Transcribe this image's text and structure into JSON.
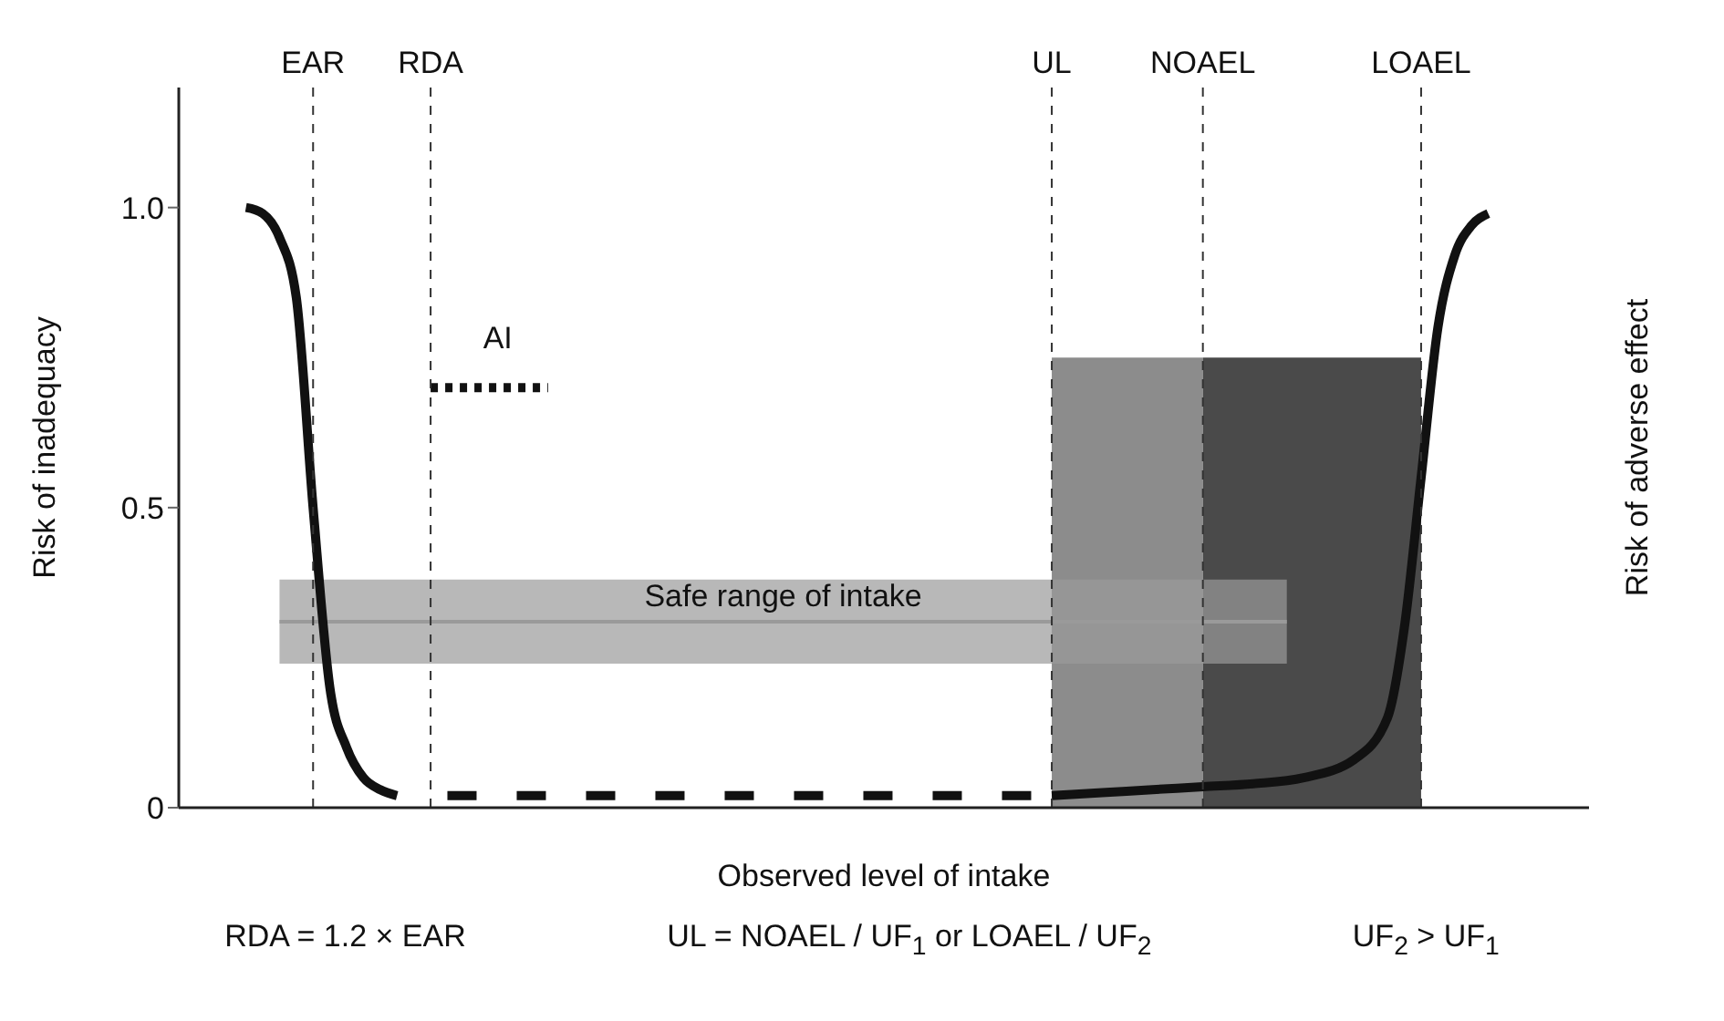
{
  "chart_data": {
    "type": "line",
    "xlabel": "Observed level of intake",
    "ylabel": "Risk of inadequacy",
    "y2label": "Risk of adverse effect",
    "categories": [
      null,
      null,
      null,
      null,
      null,
      null,
      null,
      null,
      "EAR",
      null,
      null,
      null,
      null,
      null,
      null,
      "RDA",
      null,
      null,
      null,
      null,
      null,
      null,
      null,
      null,
      null,
      null,
      null,
      null,
      null,
      null,
      null,
      null,
      null,
      null,
      null,
      null,
      null,
      null,
      null,
      null,
      null,
      null,
      null,
      null,
      null,
      null,
      null,
      null,
      null,
      null,
      null,
      null,
      "UL",
      null,
      null,
      null,
      null,
      null,
      null,
      null,
      null,
      "NOAEL",
      null,
      null,
      null,
      null,
      null,
      null,
      null,
      null,
      null,
      null,
      null,
      null,
      "LOAEL",
      null,
      null,
      null,
      null,
      null,
      null,
      null,
      null,
      null,
      null
    ],
    "ylim": [
      0,
      1.2
    ],
    "yticks": [
      0,
      0.5,
      {
        "value": 1,
        "label": "1.0"
      }
    ],
    "grid": "x",
    "marker": "none",
    "series": [
      {
        "type": "area",
        "color": "#8c8c8c",
        "values": [
          null,
          null,
          null,
          null,
          null,
          null,
          null,
          null,
          null,
          null,
          null,
          null,
          null,
          null,
          null,
          null,
          null,
          null,
          null,
          null,
          null,
          null,
          null,
          null,
          null,
          null,
          null,
          null,
          null,
          null,
          null,
          null,
          null,
          null,
          null,
          null,
          null,
          null,
          null,
          null,
          null,
          null,
          null,
          null,
          null,
          null,
          null,
          null,
          null,
          null,
          null,
          null,
          0.75,
          0.75,
          0.75,
          0.75,
          0.75,
          0.75,
          0.75,
          0.75,
          0.75,
          0.75,
          null,
          null,
          null,
          null,
          null,
          null,
          null,
          null,
          null,
          null,
          null,
          null,
          null,
          null,
          null,
          null,
          null,
          null,
          null,
          null,
          null,
          null,
          null
        ]
      },
      {
        "type": "area",
        "color": "#4a4a4a",
        "values": [
          null,
          null,
          null,
          null,
          null,
          null,
          null,
          null,
          null,
          null,
          null,
          null,
          null,
          null,
          null,
          null,
          null,
          null,
          null,
          null,
          null,
          null,
          null,
          null,
          null,
          null,
          null,
          null,
          null,
          null,
          null,
          null,
          null,
          null,
          null,
          null,
          null,
          null,
          null,
          null,
          null,
          null,
          null,
          null,
          null,
          null,
          null,
          null,
          null,
          null,
          null,
          null,
          null,
          null,
          null,
          null,
          null,
          null,
          null,
          null,
          null,
          0.75,
          0.75,
          0.75,
          0.75,
          0.75,
          0.75,
          0.75,
          0.75,
          0.75,
          0.75,
          0.75,
          0.75,
          0.75,
          0.75,
          null,
          null,
          null,
          null,
          null,
          null,
          null,
          null,
          null,
          null
        ]
      },
      {
        "name": "Safe range of intake",
        "color": "#9a9a9a",
        "values": [
          null,
          null,
          null,
          null,
          null,
          null,
          0.31,
          0.31,
          0.31,
          0.31,
          0.31,
          0.31,
          0.31,
          0.31,
          0.31,
          0.31,
          0.31,
          0.31,
          0.31,
          0.31,
          0.31,
          0.31,
          0.31,
          0.31,
          0.31,
          0.31,
          0.31,
          0.31,
          0.31,
          0.31,
          0.31,
          0.31,
          0.31,
          0.31,
          0.31,
          0.31,
          0.31,
          0.31,
          0.31,
          0.31,
          0.31,
          0.31,
          0.31,
          0.31,
          0.31,
          0.31,
          0.31,
          0.31,
          0.31,
          0.31,
          0.31,
          0.31,
          0.31,
          0.31,
          0.31,
          0.31,
          0.31,
          0.31,
          0.31,
          0.31,
          0.31,
          0.31,
          0.31,
          0.31,
          0.31,
          0.31,
          0.31,
          null,
          null,
          null,
          null,
          null,
          null,
          null,
          null,
          null,
          null,
          null,
          null,
          null,
          null,
          null,
          null,
          null,
          null
        ],
        "lower": [
          null,
          null,
          null,
          null,
          null,
          null,
          0.24,
          0.24,
          0.24,
          0.24,
          0.24,
          0.24,
          0.24,
          0.24,
          0.24,
          0.24,
          0.24,
          0.24,
          0.24,
          0.24,
          0.24,
          0.24,
          0.24,
          0.24,
          0.24,
          0.24,
          0.24,
          0.24,
          0.24,
          0.24,
          0.24,
          0.24,
          0.24,
          0.24,
          0.24,
          0.24,
          0.24,
          0.24,
          0.24,
          0.24,
          0.24,
          0.24,
          0.24,
          0.24,
          0.24,
          0.24,
          0.24,
          0.24,
          0.24,
          0.24,
          0.24,
          0.24,
          0.24,
          0.24,
          0.24,
          0.24,
          0.24,
          0.24,
          0.24,
          0.24,
          0.24,
          0.24,
          0.24,
          0.24,
          0.24,
          0.24,
          0.24,
          null,
          null,
          null,
          null,
          null,
          null,
          null,
          null,
          null,
          null,
          null,
          null,
          null,
          null,
          null,
          null,
          null,
          null
        ],
        "upper": [
          null,
          null,
          null,
          null,
          null,
          null,
          0.38,
          0.38,
          0.38,
          0.38,
          0.38,
          0.38,
          0.38,
          0.38,
          0.38,
          0.38,
          0.38,
          0.38,
          0.38,
          0.38,
          0.38,
          0.38,
          0.38,
          0.38,
          0.38,
          0.38,
          0.38,
          0.38,
          0.38,
          0.38,
          0.38,
          0.38,
          0.38,
          0.38,
          0.38,
          0.38,
          0.38,
          0.38,
          0.38,
          0.38,
          0.38,
          0.38,
          0.38,
          0.38,
          0.38,
          0.38,
          0.38,
          0.38,
          0.38,
          0.38,
          0.38,
          0.38,
          0.38,
          0.38,
          0.38,
          0.38,
          0.38,
          0.38,
          0.38,
          0.38,
          0.38,
          0.38,
          0.38,
          0.38,
          0.38,
          0.38,
          0.38,
          null,
          null,
          null,
          null,
          null,
          null,
          null,
          null,
          null,
          null,
          null,
          null,
          null,
          null,
          null,
          null,
          null,
          null
        ]
      },
      {
        "color": "#111111",
        "line_style": "solid",
        "values": [
          null,
          null,
          null,
          null,
          1.0,
          0.99,
          0.95,
          0.85,
          0.5,
          0.2,
          0.1,
          0.05,
          0.03,
          0.02,
          null,
          null,
          null,
          null,
          null,
          null,
          null,
          null,
          null,
          null,
          null,
          null,
          null,
          null,
          null,
          null,
          null,
          null,
          null,
          null,
          null,
          null,
          null,
          null,
          null,
          null,
          null,
          null,
          null,
          null,
          null,
          null,
          null,
          null,
          null,
          null,
          null,
          null,
          null,
          null,
          null,
          null,
          null,
          null,
          null,
          null,
          null,
          null,
          null,
          null,
          null,
          null,
          null,
          null,
          null,
          null,
          null,
          null,
          null,
          null,
          null,
          null,
          null,
          null,
          null,
          null,
          null,
          null,
          null,
          null,
          null
        ]
      },
      {
        "name": "AI",
        "color": "#111111",
        "line_style": "dotted",
        "values": [
          null,
          null,
          null,
          null,
          null,
          null,
          null,
          null,
          null,
          null,
          null,
          null,
          null,
          null,
          null,
          0.7,
          0.7,
          0.7,
          0.7,
          0.7,
          0.7,
          0.7,
          0.7,
          null,
          null,
          null,
          null,
          null,
          null,
          null,
          null,
          null,
          null,
          null,
          null,
          null,
          null,
          null,
          null,
          null,
          null,
          null,
          null,
          null,
          null,
          null,
          null,
          null,
          null,
          null,
          null,
          null,
          null,
          null,
          null,
          null,
          null,
          null,
          null,
          null,
          null,
          null,
          null,
          null,
          null,
          null,
          null,
          null,
          null,
          null,
          null,
          null,
          null,
          null,
          null,
          null,
          null,
          null,
          null,
          null,
          null,
          null,
          null,
          null,
          null
        ]
      },
      {
        "color": "#111111",
        "line_style": "dashed",
        "values": [
          null,
          null,
          null,
          null,
          null,
          null,
          null,
          null,
          null,
          null,
          null,
          null,
          null,
          null,
          null,
          null,
          0.02,
          0.02,
          0.02,
          0.02,
          0.02,
          0.02,
          0.02,
          0.02,
          0.02,
          0.02,
          0.02,
          0.02,
          0.02,
          0.02,
          0.02,
          0.02,
          0.02,
          0.02,
          0.02,
          0.02,
          0.02,
          0.02,
          0.02,
          0.02,
          0.02,
          0.02,
          0.02,
          0.02,
          0.02,
          0.02,
          0.02,
          0.02,
          0.02,
          0.02,
          0.02,
          0.02,
          null,
          null,
          null,
          null,
          null,
          null,
          null,
          null,
          null,
          null,
          null,
          null,
          null,
          null,
          null,
          null,
          null,
          null,
          null,
          null,
          null,
          null,
          null,
          null,
          null,
          null,
          null,
          null,
          null,
          null,
          null,
          null,
          null
        ]
      },
      {
        "color": "#111111",
        "line_style": "solid",
        "values": [
          null,
          null,
          null,
          null,
          null,
          null,
          null,
          null,
          null,
          null,
          null,
          null,
          null,
          null,
          null,
          null,
          null,
          null,
          null,
          null,
          null,
          null,
          null,
          null,
          null,
          null,
          null,
          null,
          null,
          null,
          null,
          null,
          null,
          null,
          null,
          null,
          null,
          null,
          null,
          null,
          null,
          null,
          null,
          null,
          null,
          null,
          null,
          null,
          null,
          null,
          null,
          null,
          0.02,
          null,
          null,
          0.025,
          null,
          null,
          0.03,
          null,
          null,
          0.035,
          null,
          null,
          0.04,
          null,
          null,
          0.05,
          null,
          null,
          0.08,
          null,
          0.15,
          0.3,
          0.55,
          0.8,
          0.92,
          0.97,
          0.99,
          null,
          null,
          null,
          null,
          null,
          null
        ]
      }
    ],
    "annotations": [
      "RDA = 1.2 × EAR",
      "UL = NOAEL / UF$_{1}$ or LOAEL / UF$_{2}$",
      "UF$_{2}$ > UF$_{1}$"
    ]
  }
}
